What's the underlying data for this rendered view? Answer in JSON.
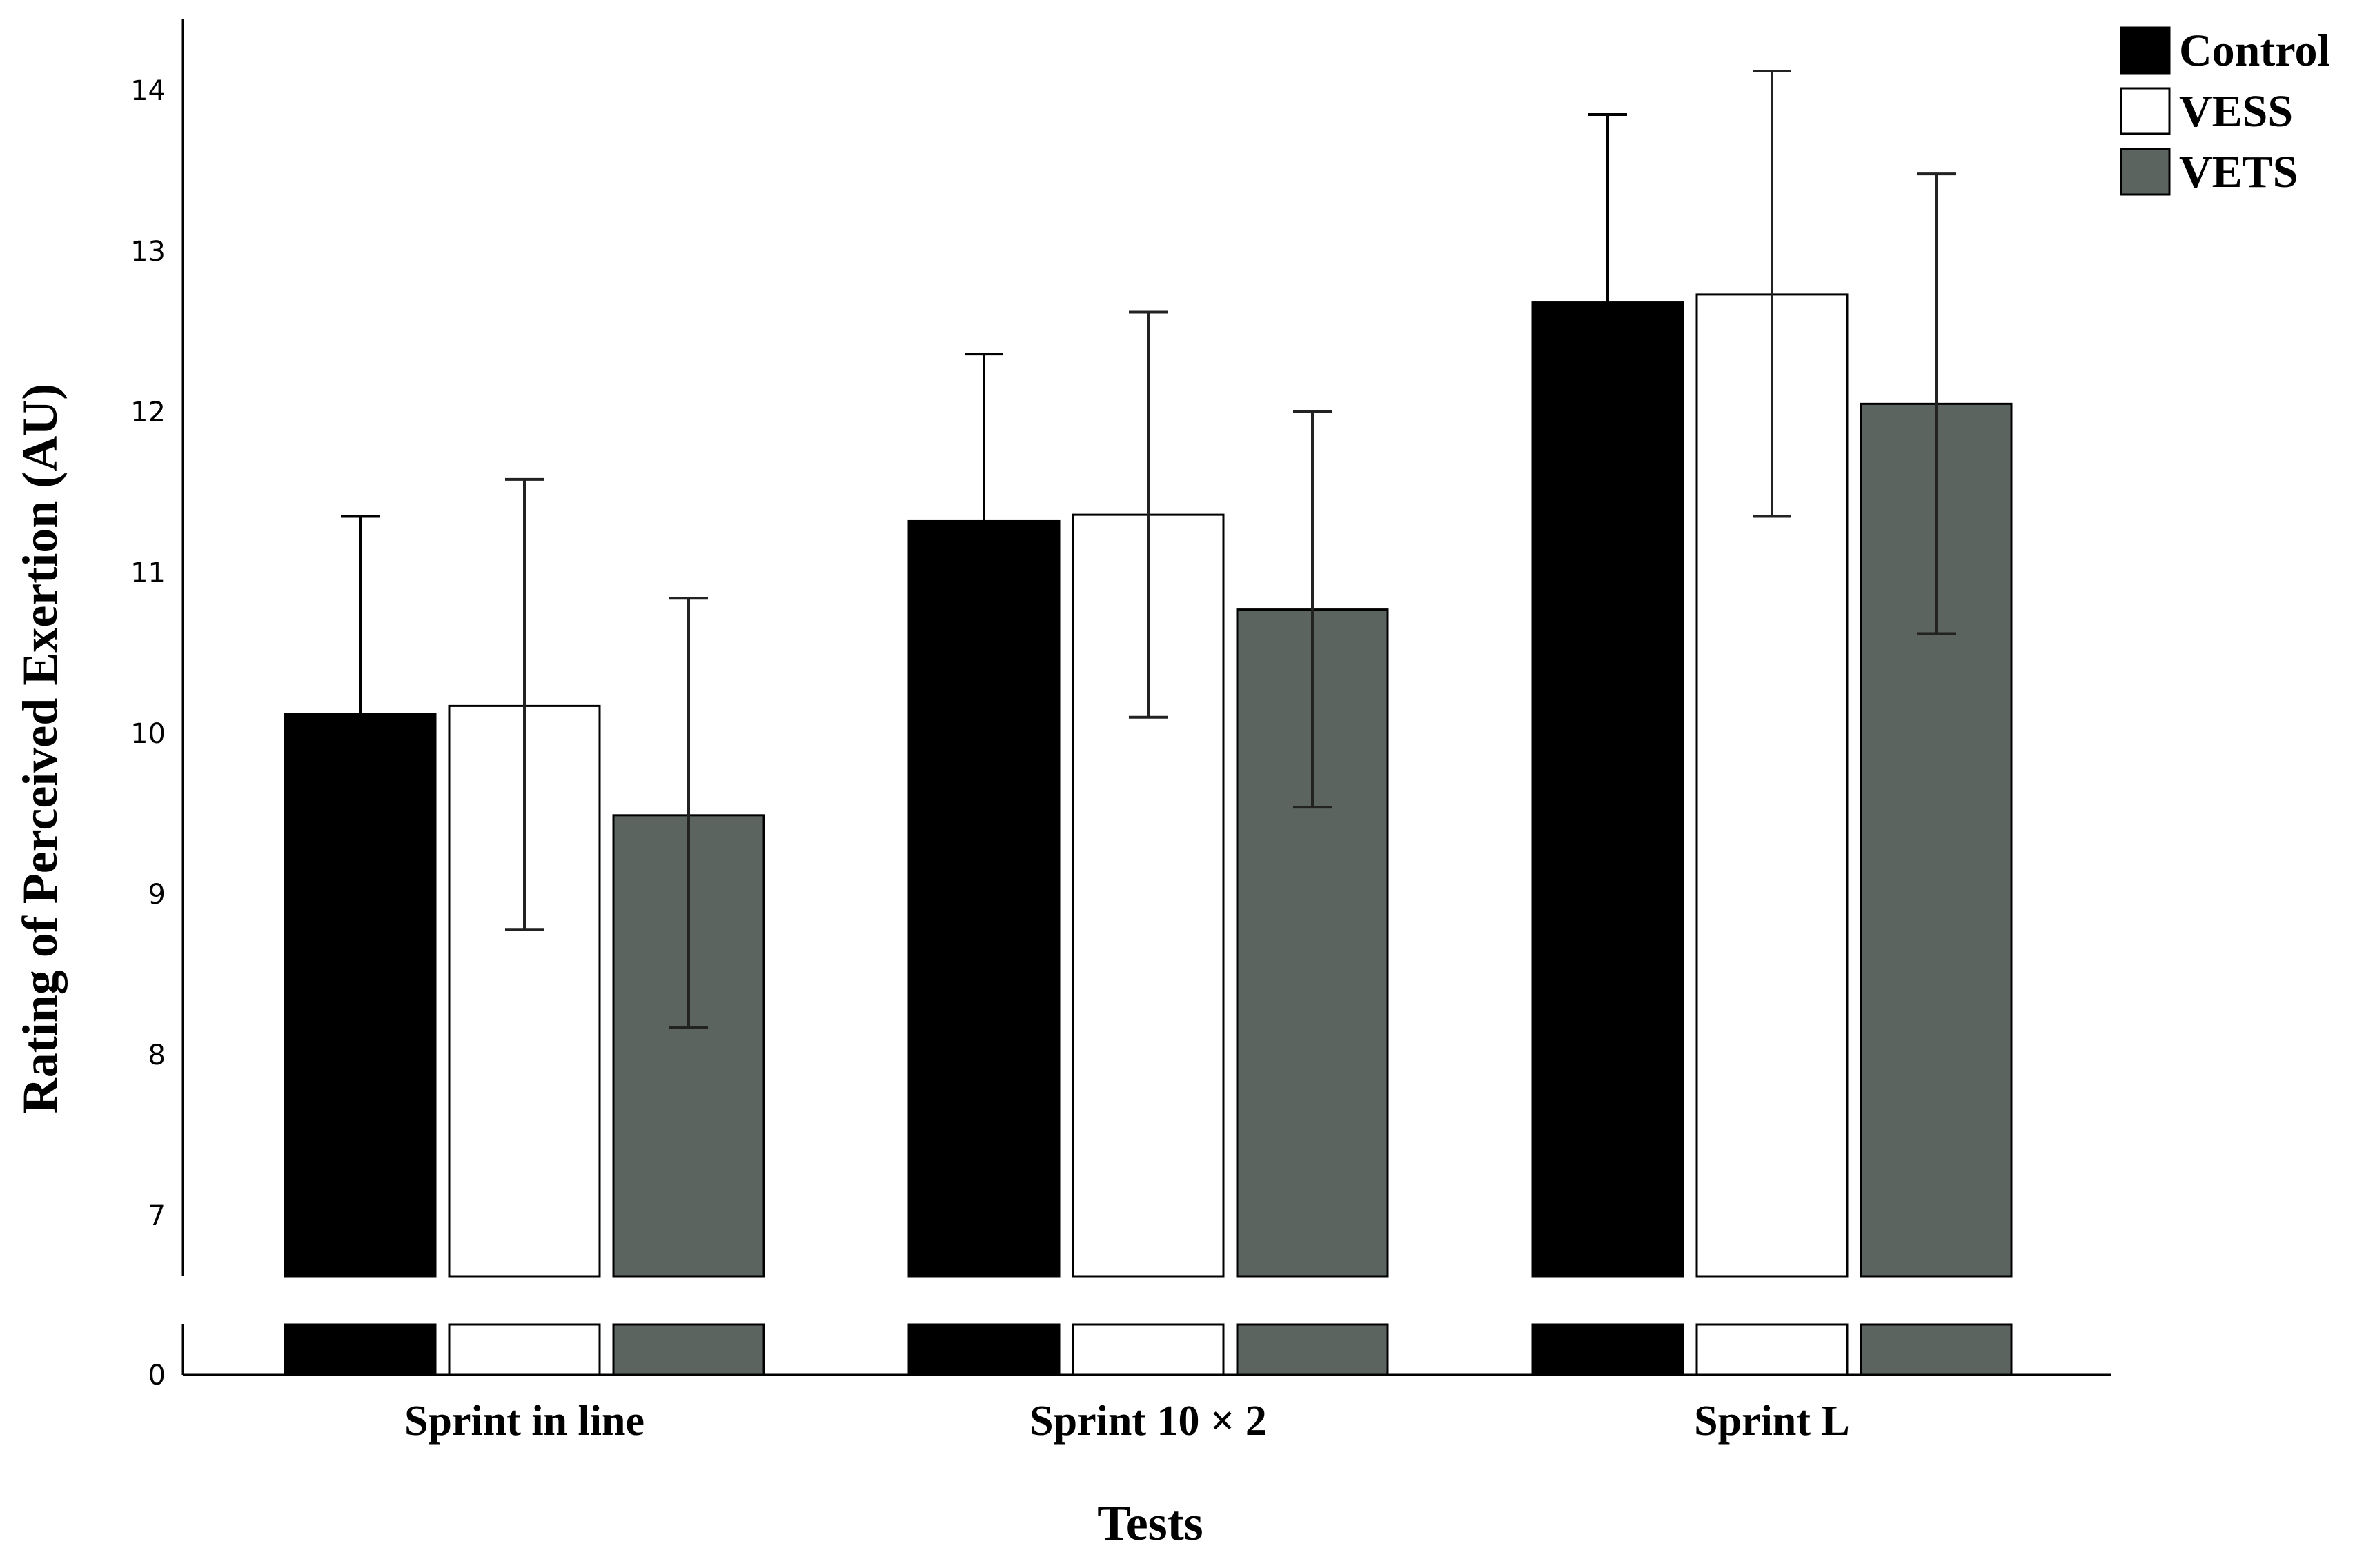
{
  "chart_data": {
    "type": "bar",
    "title": "",
    "xlabel": "Tests",
    "ylabel": "Rating of Perceived Exertion (AU)",
    "categories": [
      "Sprint in line",
      "Sprint 10 × 2",
      "Sprint L"
    ],
    "series": [
      {
        "name": "Control",
        "values": [
          10.12,
          11.32,
          12.68
        ],
        "error_low": [
          null,
          null,
          null
        ],
        "error_high": [
          11.35,
          12.36,
          13.85
        ]
      },
      {
        "name": "VESS",
        "values": [
          10.17,
          11.36,
          12.73
        ],
        "error_low": [
          8.78,
          10.1,
          11.35
        ],
        "error_high": [
          11.58,
          12.62,
          14.12
        ]
      },
      {
        "name": "VETS",
        "values": [
          9.49,
          10.77,
          12.05
        ],
        "error_low": [
          8.17,
          9.54,
          10.62
        ],
        "error_high": [
          10.84,
          12.0,
          13.48
        ]
      }
    ],
    "colors": {
      "Control": "#000000",
      "VESS": "#ffffff",
      "VETS": "#5c645f"
    },
    "yticks": [
      "0",
      "7",
      "8",
      "9",
      "10",
      "11",
      "12",
      "13",
      "14"
    ],
    "ylim": [
      0,
      14.5
    ],
    "axis_break": {
      "from": 0.3,
      "to": 6.6
    },
    "legend_position": "top-right",
    "grid": false
  }
}
